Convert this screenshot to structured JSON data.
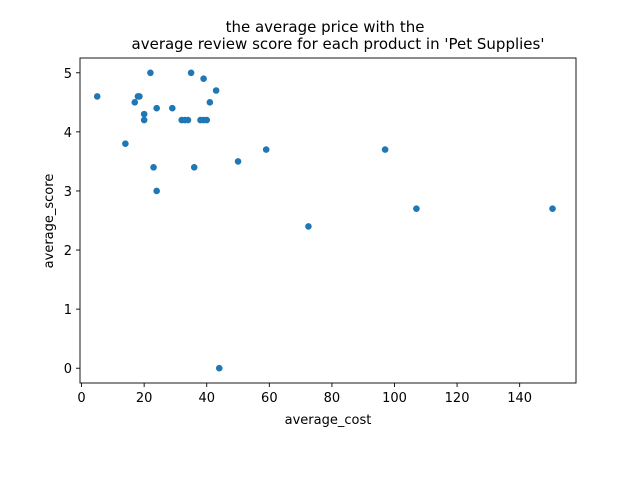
{
  "chart_data": {
    "type": "scatter",
    "title_lines": [
      "the average price with the",
      "average review score for each product in 'Pet Supplies'"
    ],
    "xlabel": "average_cost",
    "ylabel": "average_score",
    "xlim": [
      -0.5,
      158
    ],
    "ylim": [
      -0.25,
      5.25
    ],
    "x_ticks": [
      0,
      20,
      40,
      60,
      80,
      100,
      120,
      140
    ],
    "y_ticks": [
      0,
      1,
      2,
      3,
      4,
      5
    ],
    "grid": false,
    "marker_color": "#1f77b4",
    "points": [
      {
        "x": 5,
        "y": 4.6
      },
      {
        "x": 14,
        "y": 3.8
      },
      {
        "x": 17,
        "y": 4.5
      },
      {
        "x": 18,
        "y": 4.6
      },
      {
        "x": 18.5,
        "y": 4.6
      },
      {
        "x": 20,
        "y": 4.3
      },
      {
        "x": 20,
        "y": 4.2
      },
      {
        "x": 22,
        "y": 5.0
      },
      {
        "x": 23,
        "y": 3.4
      },
      {
        "x": 24,
        "y": 4.4
      },
      {
        "x": 24,
        "y": 3.0
      },
      {
        "x": 29,
        "y": 4.4
      },
      {
        "x": 32,
        "y": 4.2
      },
      {
        "x": 33,
        "y": 4.2
      },
      {
        "x": 34,
        "y": 4.2
      },
      {
        "x": 35,
        "y": 5.0
      },
      {
        "x": 36,
        "y": 3.4
      },
      {
        "x": 38,
        "y": 4.2
      },
      {
        "x": 39,
        "y": 4.9
      },
      {
        "x": 39,
        "y": 4.2
      },
      {
        "x": 40,
        "y": 4.2
      },
      {
        "x": 41,
        "y": 4.5
      },
      {
        "x": 43,
        "y": 4.7
      },
      {
        "x": 44,
        "y": 0.0
      },
      {
        "x": 50,
        "y": 3.5
      },
      {
        "x": 59,
        "y": 3.7
      },
      {
        "x": 72.5,
        "y": 2.4
      },
      {
        "x": 97,
        "y": 3.7
      },
      {
        "x": 107,
        "y": 2.7
      },
      {
        "x": 150.5,
        "y": 2.7
      }
    ]
  }
}
